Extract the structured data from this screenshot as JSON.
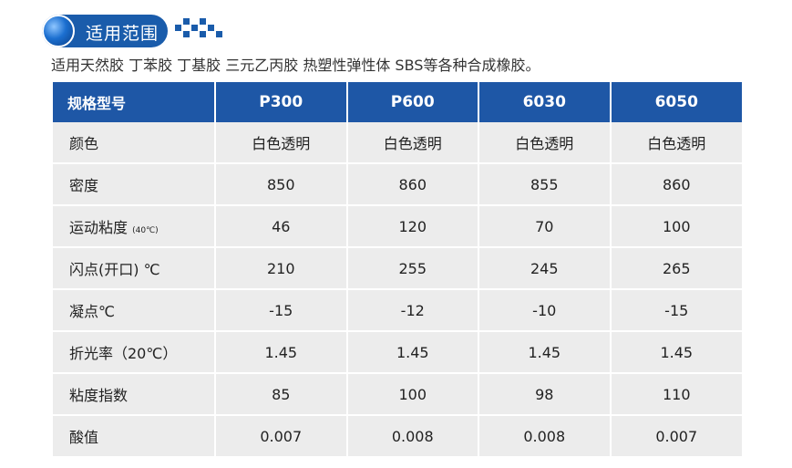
{
  "header": {
    "title": "适用范围",
    "icon": "blue-sphere-icon",
    "accent_color": "#1a5cab"
  },
  "description": "适用天然胶 丁苯胶 丁基胶 三元乙丙胶 热塑性弹性体 SBS等各种合成橡胶。",
  "table": {
    "header_bg": "#1e57a6",
    "row_bg": "#ececec",
    "columns": [
      "规格型号",
      "P300",
      "P600",
      "6030",
      "6050"
    ],
    "rows": [
      {
        "label": "颜色",
        "note": "",
        "values": [
          "白色透明",
          "白色透明",
          "白色透明",
          "白色透明"
        ]
      },
      {
        "label": "密度",
        "note": "",
        "values": [
          "850",
          "860",
          "855",
          "860"
        ]
      },
      {
        "label": "运动粘度",
        "note": "(40℃)",
        "values": [
          "46",
          "120",
          "70",
          "100"
        ]
      },
      {
        "label": "闪点(开口) ℃",
        "note": "",
        "values": [
          "210",
          "255",
          "245",
          "265"
        ]
      },
      {
        "label": "凝点℃",
        "note": "",
        "values": [
          "-15",
          "-12",
          "-10",
          "-15"
        ]
      },
      {
        "label": "折光率（20℃）",
        "note": "",
        "values": [
          "1.45",
          "1.45",
          "1.45",
          "1.45"
        ]
      },
      {
        "label": "粘度指数",
        "note": "",
        "values": [
          "85",
          "100",
          "98",
          "110"
        ]
      },
      {
        "label": "酸值",
        "note": "",
        "values": [
          "0.007",
          "0.008",
          "0.008",
          "0.007"
        ]
      }
    ]
  }
}
